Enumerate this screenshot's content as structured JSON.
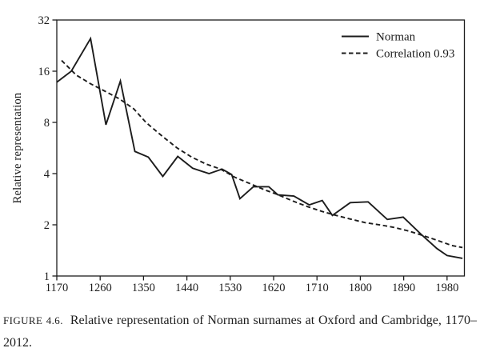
{
  "page": {
    "background": "#ffffff",
    "ink": "#1c1c1c"
  },
  "figure": {
    "caption_label": "Figure 4.6.",
    "caption_text": "Relative representation of Norman surnames at Oxford and Cambridge,",
    "caption_range": "1170–2012."
  },
  "chart_data": {
    "type": "line",
    "title": "",
    "xlabel": "",
    "ylabel": "Relative representation",
    "y_scale": "log2",
    "grid": false,
    "legend_position": "top-right-inside",
    "x_range": [
      1170,
      2016
    ],
    "y_range": [
      1,
      32
    ],
    "x_ticks": [
      1170,
      1260,
      1350,
      1440,
      1530,
      1620,
      1710,
      1800,
      1890,
      1980
    ],
    "y_ticks": [
      1,
      2,
      4,
      8,
      16,
      32
    ],
    "series": [
      {
        "name": "Norman",
        "style": "solid",
        "color": "#1c1c1c",
        "points": [
          [
            1170,
            13.8
          ],
          [
            1200,
            16.0
          ],
          [
            1240,
            24.9
          ],
          [
            1272,
            7.75
          ],
          [
            1302,
            14.0
          ],
          [
            1332,
            5.4
          ],
          [
            1360,
            5.0
          ],
          [
            1390,
            3.85
          ],
          [
            1421,
            5.05
          ],
          [
            1452,
            4.3
          ],
          [
            1486,
            4.0
          ],
          [
            1513,
            4.25
          ],
          [
            1533,
            3.95
          ],
          [
            1550,
            2.85
          ],
          [
            1578,
            3.35
          ],
          [
            1610,
            3.35
          ],
          [
            1629,
            3.0
          ],
          [
            1662,
            2.95
          ],
          [
            1694,
            2.62
          ],
          [
            1721,
            2.78
          ],
          [
            1742,
            2.27
          ],
          [
            1779,
            2.7
          ],
          [
            1816,
            2.73
          ],
          [
            1856,
            2.15
          ],
          [
            1889,
            2.22
          ],
          [
            1926,
            1.76
          ],
          [
            1959,
            1.45
          ],
          [
            1980,
            1.32
          ],
          [
            2012,
            1.27
          ]
        ]
      },
      {
        "name": "Correlation 0.93",
        "style": "dashed",
        "color": "#1c1c1c",
        "points": [
          [
            1180,
            18.5
          ],
          [
            1210,
            15.2
          ],
          [
            1240,
            13.5
          ],
          [
            1270,
            12.2
          ],
          [
            1300,
            11.0
          ],
          [
            1330,
            9.6
          ],
          [
            1355,
            8.0
          ],
          [
            1390,
            6.6
          ],
          [
            1420,
            5.65
          ],
          [
            1450,
            5.0
          ],
          [
            1480,
            4.55
          ],
          [
            1510,
            4.25
          ],
          [
            1540,
            3.8
          ],
          [
            1570,
            3.5
          ],
          [
            1600,
            3.22
          ],
          [
            1630,
            3.0
          ],
          [
            1660,
            2.76
          ],
          [
            1690,
            2.56
          ],
          [
            1720,
            2.4
          ],
          [
            1750,
            2.27
          ],
          [
            1780,
            2.16
          ],
          [
            1810,
            2.06
          ],
          [
            1840,
            2.0
          ],
          [
            1870,
            1.93
          ],
          [
            1900,
            1.84
          ],
          [
            1930,
            1.73
          ],
          [
            1960,
            1.62
          ],
          [
            1990,
            1.51
          ],
          [
            2012,
            1.47
          ]
        ]
      }
    ]
  }
}
